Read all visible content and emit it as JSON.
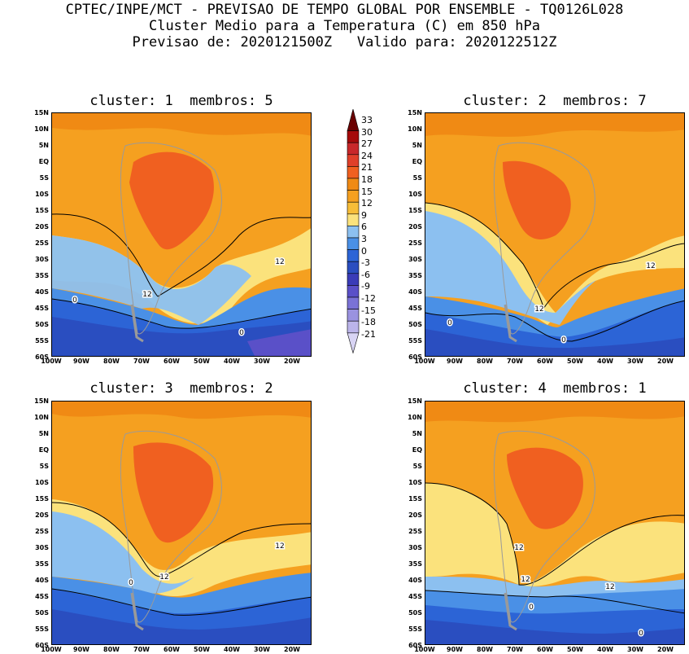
{
  "header": {
    "line1": "CPTEC/INPE/MCT - PREVISAO DE TEMPO GLOBAL POR ENSEMBLE - TQ0126L028",
    "line2": "Cluster Medio para a Temperatura (C) em 850 hPa",
    "line3": "Previsao de: 2020121500Z   Valido para: 2020122512Z"
  },
  "panels": [
    {
      "title": "cluster: 1  membros: 5",
      "contour_labels": [
        "12",
        "12",
        "0",
        "0"
      ]
    },
    {
      "title": "cluster: 2  membros: 7",
      "contour_labels": [
        "12",
        "12",
        "0",
        "0"
      ]
    },
    {
      "title": "cluster: 3  membros: 2",
      "contour_labels": [
        "12",
        "12",
        "0"
      ]
    },
    {
      "title": "cluster: 4  membros: 1",
      "contour_labels": [
        "12",
        "12",
        "12",
        "0",
        "0"
      ]
    }
  ],
  "lat_ticks": [
    "15N",
    "10N",
    "5N",
    "EQ",
    "5S",
    "10S",
    "15S",
    "20S",
    "25S",
    "30S",
    "35S",
    "40S",
    "45S",
    "50S",
    "55S",
    "60S"
  ],
  "lon_ticks": [
    "100W",
    "90W",
    "80W",
    "70W",
    "60W",
    "50W",
    "40W",
    "30W",
    "20W"
  ],
  "colorbar": {
    "levels": [
      "33",
      "30",
      "27",
      "24",
      "21",
      "18",
      "15",
      "12",
      "9",
      "6",
      "3",
      "0",
      "-3",
      "-6",
      "-9",
      "-12",
      "-15",
      "-18",
      "-21"
    ],
    "colors": [
      "#6a0000",
      "#a50a0a",
      "#c8282a",
      "#e0402a",
      "#f06020",
      "#f08a14",
      "#f5a020",
      "#f7bd38",
      "#fbe27c",
      "#8cc0f0",
      "#4a90e6",
      "#2c64d6",
      "#2a4ec0",
      "#3a3cb8",
      "#5a50c8",
      "#7a72d6",
      "#9a92e0",
      "#bbb4ea",
      "#d8d4f4"
    ]
  },
  "palette": {
    "gt18": "#f06020",
    "15-18": "#f08a14",
    "12-15": "#f5a020",
    "9-12": "#fbe27c",
    "6-9": "#8cc0f0",
    "3-6": "#4a90e6",
    "0-3": "#2c64d6",
    "lt0": "#2a4ec0",
    "lt-6": "#5a50c8",
    "coast": "#9a9a9a"
  }
}
